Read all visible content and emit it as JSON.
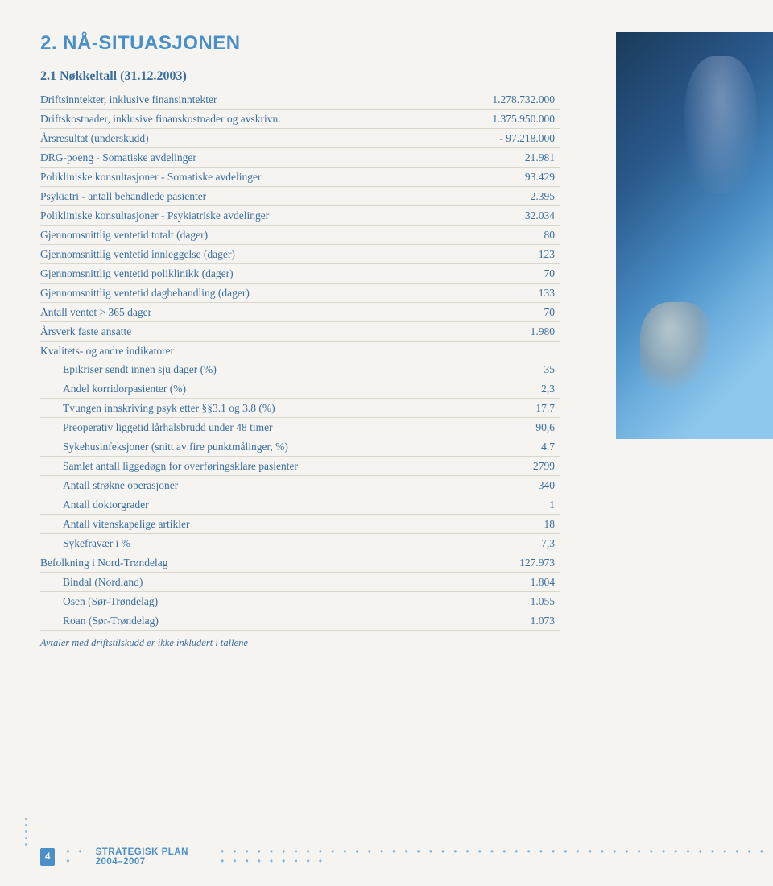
{
  "heading1": "2. NÅ-SITUASJONEN",
  "heading2": "2.1 Nøkkeltall (31.12.2003)",
  "rows": [
    {
      "label": "Driftsinntekter, inklusive finansinntekter",
      "value": "1.278.732.000",
      "indent": false
    },
    {
      "label": "Driftskostnader, inklusive finanskostnader og avskrivn.",
      "value": "1.375.950.000",
      "indent": false
    },
    {
      "label": "Årsresultat (underskudd)",
      "value": "- 97.218.000",
      "indent": false
    },
    {
      "label": "DRG-poeng - Somatiske avdelinger",
      "value": "21.981",
      "indent": false
    },
    {
      "label": "Polikliniske konsultasjoner - Somatiske avdelinger",
      "value": "93.429",
      "indent": false
    },
    {
      "label": "Psykiatri - antall behandlede pasienter",
      "value": "2.395",
      "indent": false
    },
    {
      "label": "Polikliniske konsultasjoner - Psykiatriske avdelinger",
      "value": "32.034",
      "indent": false
    },
    {
      "label": "Gjennomsnittlig ventetid totalt (dager)",
      "value": "80",
      "indent": false
    },
    {
      "label": "Gjennomsnittlig ventetid innleggelse (dager)",
      "value": "123",
      "indent": false
    },
    {
      "label": "Gjennomsnittlig ventetid poliklinikk (dager)",
      "value": "70",
      "indent": false
    },
    {
      "label": "Gjennomsnittlig ventetid dagbehandling (dager)",
      "value": "133",
      "indent": false
    },
    {
      "label": "Antall ventet > 365 dager",
      "value": "70",
      "indent": false
    },
    {
      "label": "Årsverk faste ansatte",
      "value": "1.980",
      "indent": false
    },
    {
      "label": "Kvalitets- og andre indikatorer",
      "value": "",
      "indent": false,
      "noborder": true
    },
    {
      "label": "Epikriser sendt innen sju dager (%)",
      "value": "35",
      "indent": true
    },
    {
      "label": "Andel korridorpasienter (%)",
      "value": "2,3",
      "indent": true
    },
    {
      "label": "Tvungen innskriving psyk etter §§3.1 og 3.8 (%)",
      "value": "17.7",
      "indent": true
    },
    {
      "label": "Preoperativ liggetid lårhalsbrudd under 48 timer",
      "value": "90,6",
      "indent": true
    },
    {
      "label": "Sykehusinfeksjoner (snitt av fire punktmålinger, %)",
      "value": "4.7",
      "indent": true
    },
    {
      "label": "Samlet antall liggedøgn for overføringsklare pasienter",
      "value": "2799",
      "indent": true
    },
    {
      "label": "Antall strøkne operasjoner",
      "value": "340",
      "indent": true
    },
    {
      "label": "Antall doktorgrader",
      "value": "1",
      "indent": true
    },
    {
      "label": "Antall vitenskapelige artikler",
      "value": "18",
      "indent": true
    },
    {
      "label": "Sykefravær i %",
      "value": "7,3",
      "indent": true
    },
    {
      "label": "Befolkning i Nord-Trøndelag",
      "value": "127.973",
      "indent": false
    },
    {
      "label": "Bindal (Nordland)",
      "value": "1.804",
      "indent": true
    },
    {
      "label": "Osen (Sør-Trøndelag)",
      "value": "1.055",
      "indent": true
    },
    {
      "label": "Roan (Sør-Trøndelag)",
      "value": "1.073",
      "indent": true
    }
  ],
  "footnote": "Avtaler med driftstilskudd er ikke inkludert i tallene",
  "footer": {
    "page": "4",
    "title": "STRATEGISK PLAN 2004–2007"
  },
  "colors": {
    "heading_blue": "#4a8fc5",
    "text_blue": "#3b6e9e",
    "background": "#f5f4f0",
    "border": "#d9d6cc",
    "dots": "#8fbce0"
  }
}
